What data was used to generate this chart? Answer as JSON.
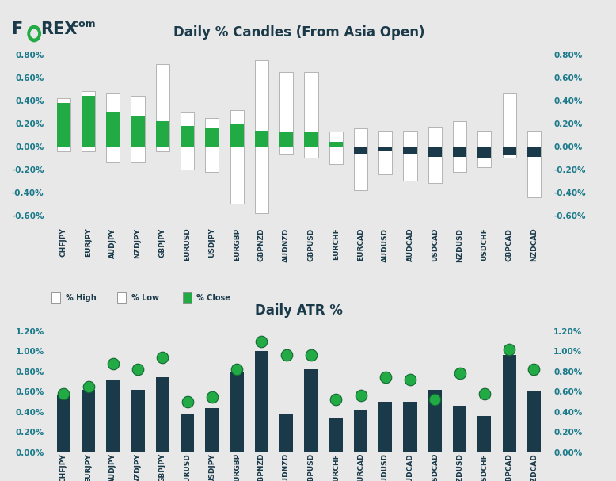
{
  "pairs": [
    "CHFJPY",
    "EURJPY",
    "AUDJPY",
    "NZDJPY",
    "GBPJPY",
    "EURUSD",
    "USDJPY",
    "EURGBP",
    "GBPNZD",
    "AUDNZD",
    "GBPUSD",
    "EURCHF",
    "EURCAD",
    "AUDUSD",
    "AUDCAD",
    "USDCAD",
    "NZDUSD",
    "USDCHF",
    "GBPCAD",
    "NZDCAD"
  ],
  "candle_high": [
    0.42,
    0.48,
    0.47,
    0.44,
    0.72,
    0.3,
    0.25,
    0.32,
    0.75,
    0.65,
    0.65,
    0.13,
    0.16,
    0.14,
    0.14,
    0.17,
    0.22,
    0.14,
    0.47,
    0.14
  ],
  "candle_low": [
    -0.04,
    -0.04,
    -0.14,
    -0.14,
    -0.04,
    -0.2,
    -0.22,
    -0.5,
    -0.58,
    -0.06,
    -0.1,
    -0.15,
    -0.38,
    -0.24,
    -0.3,
    -0.32,
    -0.22,
    -0.18,
    -0.1,
    -0.44
  ],
  "candle_close": [
    0.38,
    0.44,
    0.3,
    0.26,
    0.22,
    0.18,
    0.16,
    0.2,
    0.14,
    0.12,
    0.12,
    0.04,
    -0.06,
    -0.04,
    -0.06,
    -0.09,
    -0.09,
    -0.1,
    -0.08,
    -0.09
  ],
  "atr_hl": [
    0.56,
    0.62,
    0.72,
    0.62,
    0.74,
    0.38,
    0.44,
    0.8,
    1.0,
    0.38,
    0.82,
    0.34,
    0.42,
    0.5,
    0.5,
    0.62,
    0.46,
    0.36,
    0.96,
    0.6
  ],
  "atr_dot": [
    0.58,
    0.65,
    0.88,
    0.82,
    0.94,
    0.5,
    0.55,
    0.82,
    1.1,
    0.96,
    0.96,
    0.52,
    0.56,
    0.74,
    0.72,
    0.52,
    0.78,
    0.58,
    1.02,
    0.82
  ],
  "bg_color": "#e8e8e8",
  "candle_white_color": "#ffffff",
  "close_color_pos": "#22aa44",
  "close_color_neg": "#1a3a4a",
  "atr_bar_color": "#1a3a4a",
  "atr_dot_color": "#22aa44",
  "title1": "Daily % Candles (From Asia Open)",
  "title2": "Daily ATR %",
  "title_color": "#1a3a4a",
  "axis_color": "#1a7a8a",
  "ylim1": [
    -0.7,
    0.9
  ],
  "ylim2": [
    0.0,
    1.3
  ],
  "yticks1": [
    -0.6,
    -0.4,
    -0.2,
    0.0,
    0.2,
    0.4,
    0.6,
    0.8
  ],
  "yticks2": [
    0.0,
    0.2,
    0.4,
    0.6,
    0.8,
    1.0,
    1.2
  ]
}
